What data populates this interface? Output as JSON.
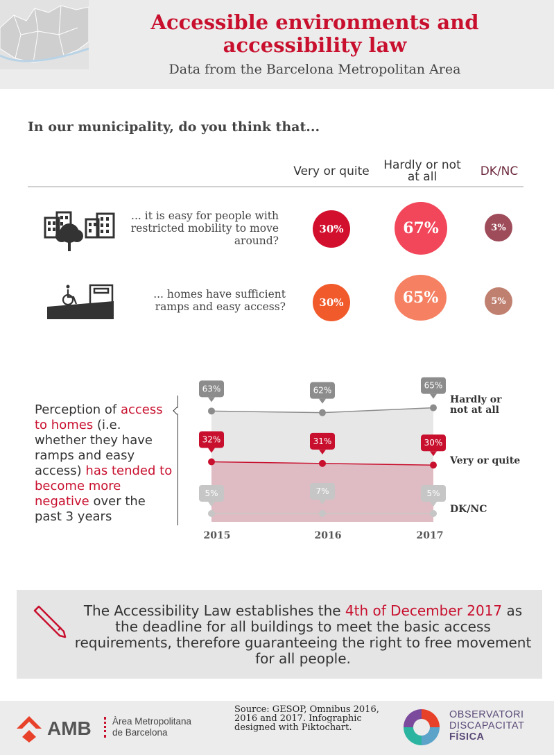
{
  "header": {
    "title": "Accessible environments and accessibility law",
    "subtitle": "Data from the Barcelona Metropolitan Area"
  },
  "question": "In our municipality, do you think that...",
  "columns": [
    "Very or quite",
    "Hardly or not at all",
    "DK/NC"
  ],
  "survey": [
    {
      "text": "... it is easy for people with restricted mobility to move around?",
      "icon": "city-buildings-tree-icon",
      "values": [
        "30%",
        "67%",
        "3%"
      ]
    },
    {
      "text": "... homes have sufficient ramps and easy access?",
      "icon": "wheelchair-ramp-door-icon",
      "values": [
        "30%",
        "65%",
        "5%"
      ]
    }
  ],
  "colors": {
    "accent_red": "#c8102e",
    "bubble_very_1": "#d2102e",
    "bubble_hardly_1": "#f2465a",
    "bubble_dk_1": "#9e4b5a",
    "bubble_very_2": "#f15a2b",
    "bubble_hardly_2": "#f58062",
    "bubble_dk_2": "#c08070",
    "gray": "#8c8c8c",
    "light_gray": "#c6c6c6",
    "area_gray": "#e7e7e7",
    "area_pink": "#dfbcc3"
  },
  "perception": {
    "t1": "Perception of ",
    "t2": "access to homes",
    "t3": " (i.e. whether they have ramps and easy access) ",
    "t4": "has tended to become more negative",
    "t5": " over the past 3 years"
  },
  "chart_data": {
    "type": "line",
    "x": [
      "2015",
      "2016",
      "2017"
    ],
    "series": [
      {
        "name": "Hardly or not at all",
        "values": [
          63,
          62,
          65
        ],
        "labels": [
          "63%",
          "62%",
          "65%"
        ]
      },
      {
        "name": "Very or quite",
        "values": [
          32,
          31,
          30
        ],
        "labels": [
          "32%",
          "31%",
          "30%"
        ]
      },
      {
        "name": "DK/NC",
        "values": [
          5,
          7,
          5
        ],
        "labels": [
          "5%",
          "7%",
          "5%"
        ]
      }
    ],
    "series_labels": [
      "Hardly or\nnot at all",
      "Very or quite",
      "DK/NC"
    ]
  },
  "law": {
    "t1": "The Accessibility Law establishes the ",
    "highlight": "4th of December 2017",
    "t2": " as the deadline for all buildings to meet the basic access requirements, therefore guaranteeing the right to free movement for all people."
  },
  "footer": {
    "amb": "AMB",
    "amb_line1": "Àrea Metropolitana",
    "amb_line2": "de Barcelona",
    "source": "Source:  GESOP, Omnibus 2016, 2016 and 2017. Infographic designed with Piktochart.",
    "obs_line1": "OBSERVATORI",
    "obs_line2": "DISCAPACITAT",
    "obs_line3": "FÍSICA"
  }
}
